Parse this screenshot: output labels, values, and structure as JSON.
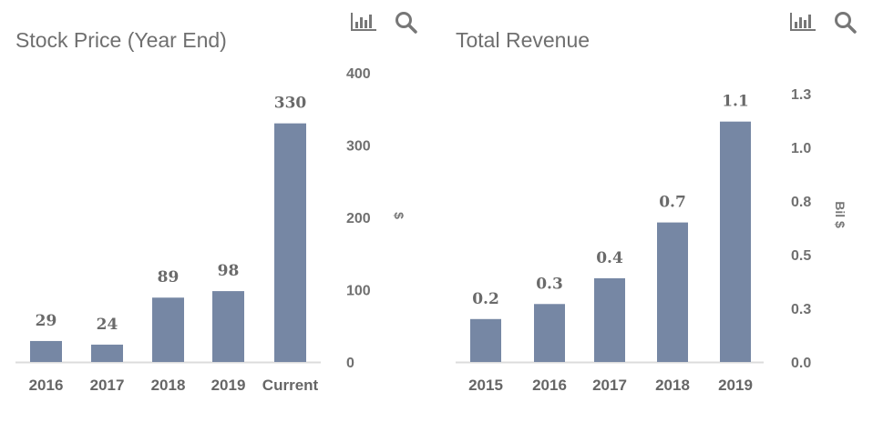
{
  "theme": {
    "bar_color": "#7687A4",
    "baseline_color": "#dcdcdc",
    "text_color": "#6f6f6f",
    "icon_color": "#777777"
  },
  "toolbar": {
    "chart_type_icon": "bar-chart-icon",
    "zoom_icon": "search-icon"
  },
  "chart_data": [
    {
      "type": "bar",
      "title": "Stock Price (Year End)",
      "categories": [
        "2016",
        "2017",
        "2018",
        "2019",
        "Current"
      ],
      "values": [
        29,
        24,
        89,
        98,
        330
      ],
      "data_labels": [
        "29",
        "24",
        "89",
        "98",
        "330"
      ],
      "xlabel": "",
      "ylabel": "$",
      "ylim": [
        0,
        400
      ],
      "yticks": [
        0,
        100,
        200,
        300,
        400
      ],
      "ytick_labels": [
        "0",
        "100",
        "200",
        "300",
        "400"
      ],
      "y_axis_side": "right",
      "grid": false,
      "legend": "none"
    },
    {
      "type": "bar",
      "title": "Total Revenue",
      "categories": [
        "2015",
        "2016",
        "2017",
        "2018",
        "2019"
      ],
      "values": [
        0.2,
        0.27,
        0.39,
        0.65,
        1.12
      ],
      "data_labels": [
        "0.2",
        "0.3",
        "0.4",
        "0.7",
        "1.1"
      ],
      "xlabel": "",
      "ylabel": "Bil $",
      "ylim": [
        0,
        1.25
      ],
      "yticks": [
        0,
        0.25,
        0.5,
        0.75,
        1.0,
        1.25
      ],
      "ytick_labels": [
        "0.0",
        "0.3",
        "0.5",
        "0.8",
        "1.0",
        "1.3"
      ],
      "y_axis_side": "right",
      "grid": false,
      "legend": "none"
    }
  ]
}
